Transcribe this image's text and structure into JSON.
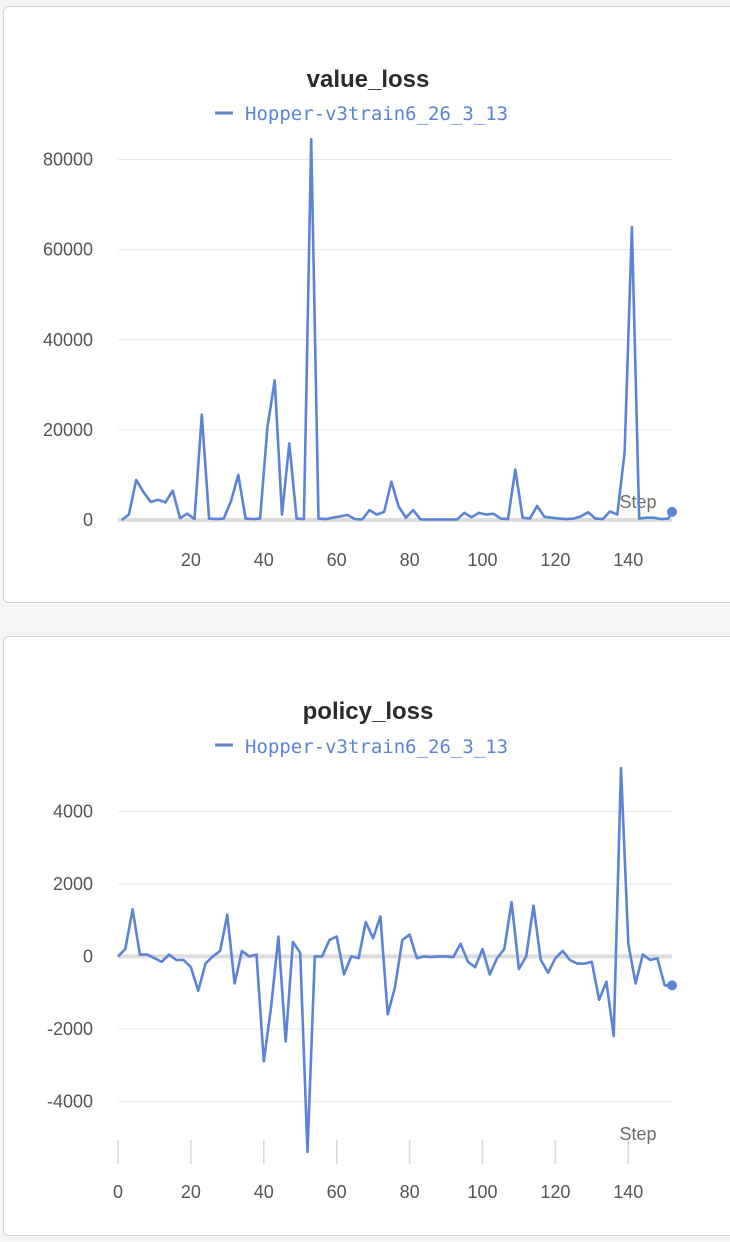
{
  "colors": {
    "series": "#5b84d6",
    "grid": "#e6e6e6",
    "zero": "#dcdcdc"
  },
  "chart_data": [
    {
      "type": "line",
      "title": "value_loss",
      "xlabel": "Step",
      "ylabel": "",
      "legend": "top-center",
      "grid": true,
      "xlim": [
        0,
        152
      ],
      "ylim": [
        0,
        85000
      ],
      "yticks": [
        0,
        20000,
        40000,
        60000,
        80000
      ],
      "ytick_labels": [
        "0",
        "20000",
        "40000",
        "60000",
        "80000"
      ],
      "xticks": [
        20,
        40,
        60,
        80,
        100,
        120,
        140
      ],
      "xtick_labels": [
        "20",
        "40",
        "60",
        "80",
        "100",
        "120",
        "140"
      ],
      "series": [
        {
          "name": "Hopper-v3train6_26_3_13",
          "x": [
            1,
            3,
            5,
            7,
            9,
            11,
            13,
            15,
            17,
            19,
            21,
            23,
            25,
            27,
            29,
            31,
            33,
            35,
            37,
            39,
            41,
            43,
            45,
            47,
            49,
            51,
            53,
            55,
            57,
            59,
            61,
            63,
            65,
            67,
            69,
            71,
            73,
            75,
            77,
            79,
            81,
            83,
            85,
            87,
            89,
            91,
            93,
            95,
            97,
            99,
            101,
            103,
            105,
            107,
            109,
            111,
            113,
            115,
            117,
            119,
            121,
            123,
            125,
            127,
            129,
            131,
            133,
            135,
            137,
            139,
            141,
            143,
            145,
            147,
            149,
            151,
            153
          ],
          "values": [
            0,
            1200,
            8900,
            6200,
            4000,
            4500,
            3900,
            6500,
            400,
            1400,
            200,
            23400,
            300,
            200,
            300,
            4200,
            10000,
            300,
            200,
            300,
            20500,
            31000,
            1200,
            17000,
            300,
            200,
            84500,
            300,
            200,
            500,
            800,
            1100,
            200,
            100,
            2200,
            1200,
            1800,
            8500,
            3000,
            500,
            2200,
            100,
            100,
            100,
            100,
            100,
            100,
            1600,
            600,
            1600,
            1200,
            1400,
            300,
            200,
            11200,
            500,
            300,
            3100,
            700,
            500,
            300,
            200,
            300,
            800,
            1700,
            300,
            200,
            1900,
            1200,
            15000,
            65000,
            300,
            500,
            500,
            200,
            300,
            1800
          ]
        }
      ]
    },
    {
      "type": "line",
      "title": "policy_loss",
      "xlabel": "Step",
      "ylabel": "",
      "legend": "top-center",
      "grid": true,
      "xlim": [
        0,
        152
      ],
      "ylim": [
        -5400,
        5200
      ],
      "yticks": [
        -4000,
        -2000,
        0,
        2000,
        4000
      ],
      "ytick_labels": [
        "-4000",
        "-2000",
        "0",
        "2000",
        "4000"
      ],
      "xticks": [
        0,
        20,
        40,
        60,
        80,
        100,
        120,
        140
      ],
      "xtick_labels": [
        "0",
        "20",
        "40",
        "60",
        "80",
        "100",
        "120",
        "140"
      ],
      "series": [
        {
          "name": "Hopper-v3train6_26_3_13",
          "x": [
            0,
            2,
            4,
            6,
            8,
            10,
            12,
            14,
            16,
            18,
            20,
            22,
            24,
            26,
            28,
            30,
            32,
            34,
            36,
            38,
            40,
            42,
            44,
            46,
            48,
            50,
            52,
            54,
            56,
            58,
            60,
            62,
            64,
            66,
            68,
            70,
            72,
            74,
            76,
            78,
            80,
            82,
            84,
            86,
            88,
            90,
            92,
            94,
            96,
            98,
            100,
            102,
            104,
            106,
            108,
            110,
            112,
            114,
            116,
            118,
            120,
            122,
            124,
            126,
            128,
            130,
            132,
            134,
            136,
            138,
            140,
            142,
            144,
            146,
            148,
            150,
            152
          ],
          "values": [
            0,
            200,
            1300,
            50,
            50,
            -50,
            -150,
            50,
            -100,
            -100,
            -300,
            -950,
            -200,
            0,
            150,
            1150,
            -750,
            150,
            0,
            50,
            -2900,
            -1400,
            550,
            -2350,
            400,
            100,
            -5400,
            0,
            0,
            450,
            550,
            -500,
            0,
            -50,
            950,
            500,
            1100,
            -1600,
            -850,
            450,
            600,
            -50,
            0,
            -20,
            0,
            0,
            -20,
            350,
            -150,
            -300,
            200,
            -500,
            -50,
            200,
            1500,
            -350,
            0,
            1400,
            -100,
            -450,
            -50,
            150,
            -100,
            -200,
            -200,
            -150,
            -1200,
            -700,
            -2200,
            5200,
            350,
            -750,
            50,
            -100,
            -50,
            -800,
            -800
          ]
        }
      ]
    }
  ]
}
